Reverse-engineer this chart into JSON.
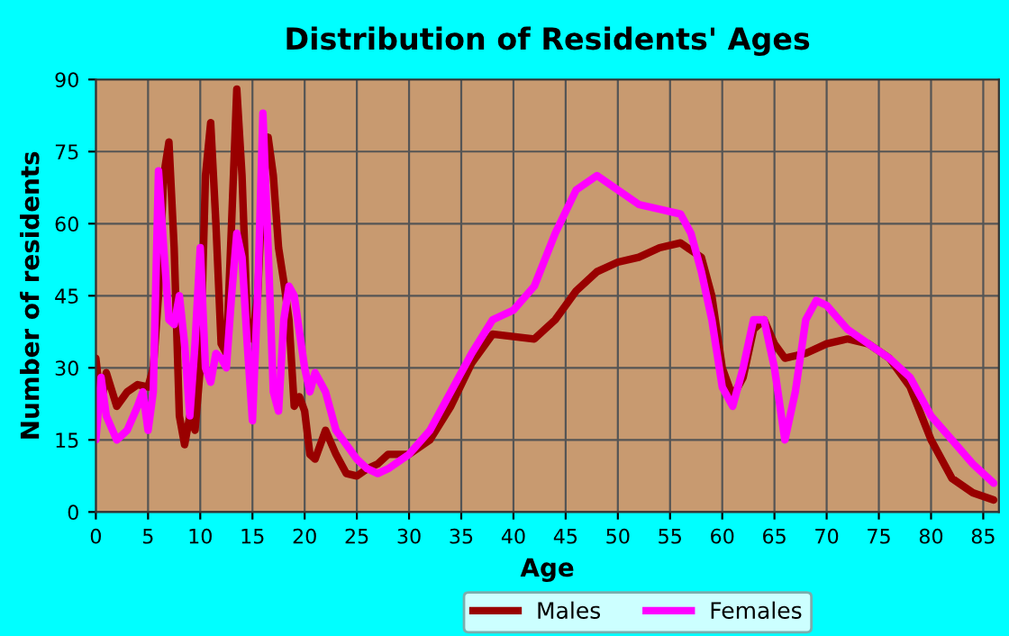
{
  "chart_data": {
    "type": "line",
    "title": "Distribution of Residents' Ages",
    "xlabel": "Age",
    "ylabel": "Number of residents",
    "xlim": [
      0,
      86.5
    ],
    "ylim": [
      0,
      90
    ],
    "xticks": [
      0,
      5,
      10,
      15,
      20,
      25,
      30,
      35,
      40,
      45,
      50,
      55,
      60,
      65,
      70,
      75,
      80,
      85
    ],
    "yticks": [
      0,
      15,
      30,
      45,
      60,
      75,
      90
    ],
    "grid": true,
    "legend": "bottom",
    "series": [
      {
        "name": "Males",
        "color": "#990000",
        "x": [
          0,
          0.5,
          1,
          2,
          3,
          4,
          5,
          5.5,
          6,
          6.5,
          7,
          7.5,
          8,
          8.5,
          9,
          9.5,
          10,
          10.5,
          11,
          11.5,
          12,
          12.5,
          13,
          13.5,
          14,
          14.5,
          15,
          15.5,
          16,
          16.5,
          17,
          17.5,
          18,
          18.5,
          19,
          19.5,
          20,
          20.5,
          21,
          22,
          23,
          24,
          25,
          26,
          27,
          28,
          30,
          32,
          34,
          36,
          38,
          40,
          42,
          44,
          46,
          48,
          50,
          52,
          54,
          56,
          58,
          59,
          60,
          61,
          62,
          63,
          64,
          65,
          66,
          68,
          70,
          72,
          74,
          76,
          78,
          80,
          82,
          84,
          86
        ],
        "values": [
          32,
          22,
          29,
          22,
          25,
          26.5,
          26,
          30,
          45,
          70,
          77,
          55,
          20,
          14,
          20,
          17,
          30,
          70,
          81,
          60,
          35,
          33,
          60,
          88,
          70,
          40,
          36,
          45,
          70,
          78,
          70,
          55,
          48,
          40,
          22,
          24,
          21,
          12,
          11,
          17,
          12,
          8,
          7.5,
          9,
          10,
          12,
          12,
          15,
          22,
          31,
          37,
          36.5,
          36,
          40,
          46,
          50,
          52,
          53,
          55,
          56,
          53,
          45,
          30,
          24,
          28,
          38,
          40,
          35,
          32,
          33,
          35,
          36,
          35,
          32,
          26,
          15,
          7,
          4,
          2.5
        ]
      },
      {
        "name": "Females",
        "color": "#ff00ff",
        "x": [
          0,
          0.5,
          1,
          2,
          3,
          4,
          4.5,
          5,
          5.5,
          6,
          6.5,
          7,
          7.5,
          8,
          8.5,
          9,
          9.5,
          10,
          10.5,
          11,
          11.5,
          12,
          12.5,
          13,
          13.5,
          14,
          14.5,
          15,
          15.5,
          16,
          16.5,
          17,
          17.5,
          18,
          18.5,
          19,
          20,
          20.5,
          21,
          22,
          23,
          24,
          25,
          26,
          27,
          28,
          30,
          32,
          34,
          36,
          38,
          40,
          42,
          44,
          46,
          48,
          50,
          52,
          54,
          56,
          57,
          58,
          59,
          60,
          61,
          62,
          63,
          64,
          65,
          66,
          67,
          68,
          69,
          70,
          72,
          74,
          76,
          78,
          80,
          82,
          84,
          86
        ],
        "values": [
          15,
          28,
          20,
          15,
          17,
          22,
          25,
          17,
          25,
          71,
          55,
          40,
          39,
          45,
          35,
          20,
          35,
          55,
          30,
          27,
          33,
          32,
          30,
          45,
          58,
          53,
          35,
          19,
          45,
          83,
          55,
          25,
          21,
          40,
          47,
          45,
          30,
          25,
          29,
          25,
          17,
          14,
          11,
          9,
          8,
          9,
          12,
          17,
          25,
          33,
          40,
          42,
          47,
          58,
          67,
          70,
          67,
          64,
          63,
          62,
          58,
          50,
          40,
          26,
          22,
          30,
          40,
          40,
          30,
          15,
          25,
          40,
          44,
          43,
          38,
          35,
          32,
          28,
          20,
          15,
          10,
          6
        ]
      }
    ]
  }
}
